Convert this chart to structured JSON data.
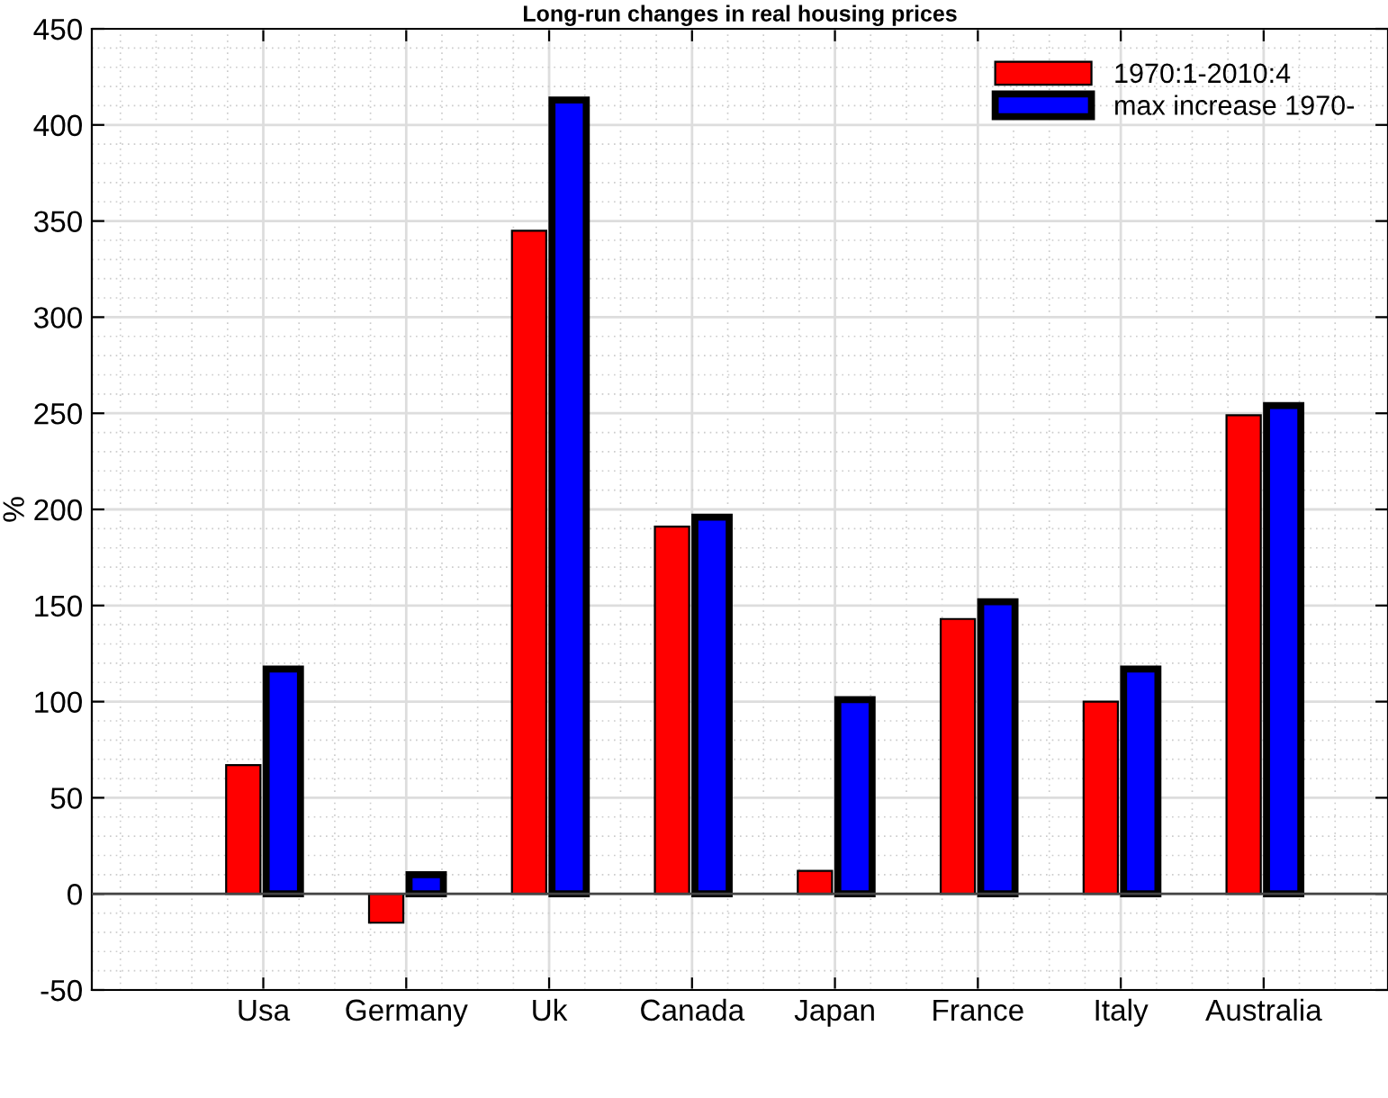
{
  "chart_data": {
    "type": "bar",
    "title": "Long-run changes in real housing prices",
    "ylabel": "%",
    "categories": [
      "Usa",
      "Germany",
      "Uk",
      "Canada",
      "Japan",
      "France",
      "Italy",
      "Australia"
    ],
    "series": [
      {
        "name": "1970:1-2010:4",
        "color": "#ff0000",
        "values": [
          67,
          -15,
          345,
          191,
          12,
          143,
          100,
          249
        ]
      },
      {
        "name": "max increase 1970-",
        "color": "#0000ff",
        "values": [
          117,
          10,
          413,
          196,
          101,
          152,
          117,
          254
        ]
      }
    ],
    "ylim": [
      -50,
      450
    ],
    "yticks": [
      -50,
      0,
      50,
      100,
      150,
      200,
      250,
      300,
      350,
      400,
      450
    ],
    "grid": true,
    "legend": "top right"
  }
}
